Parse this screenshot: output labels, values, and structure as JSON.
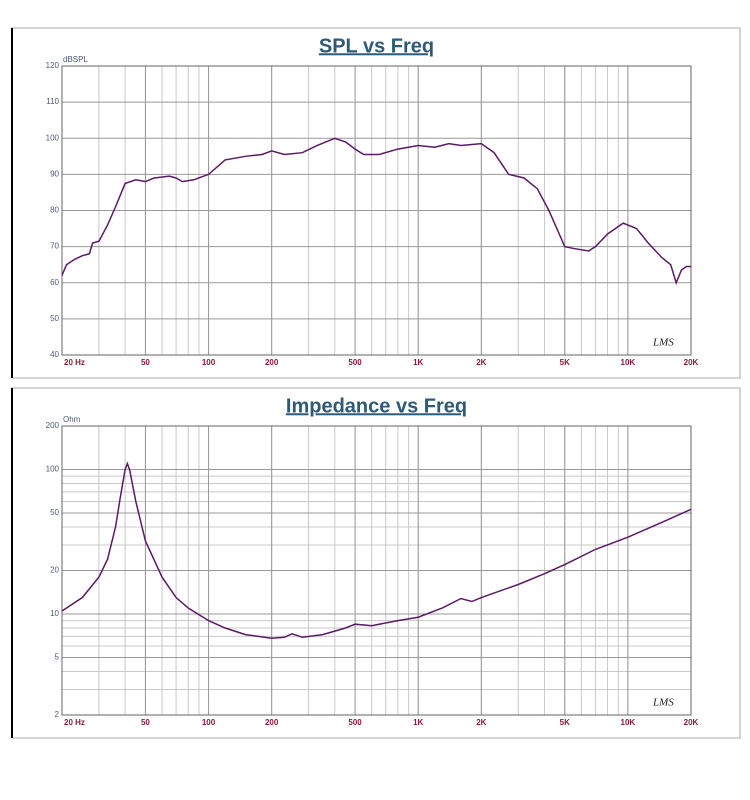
{
  "chart_data": [
    {
      "type": "line",
      "title": "SPL vs Freq",
      "y_label": "dBSPL",
      "annotation": "LMS",
      "x_scale": "log",
      "y_scale": "linear",
      "grid": true,
      "xlim": [
        20,
        20000
      ],
      "xticks": [
        {
          "value": 20,
          "label": "20 Hz"
        },
        50,
        100,
        200,
        500,
        {
          "value": 1000,
          "label": "1K"
        },
        {
          "value": 2000,
          "label": "2K"
        },
        {
          "value": 5000,
          "label": "5K"
        },
        {
          "value": 10000,
          "label": "10K"
        },
        {
          "value": 20000,
          "label": "20K"
        }
      ],
      "ylim": [
        40,
        120
      ],
      "yticks": [
        40,
        50,
        60,
        70,
        80,
        90,
        100,
        110,
        120
      ],
      "x": [
        20,
        21,
        23,
        25,
        27,
        28,
        30,
        33,
        36,
        40,
        45,
        50,
        55,
        65,
        70,
        75,
        85,
        100,
        120,
        150,
        180,
        200,
        230,
        280,
        330,
        400,
        450,
        500,
        550,
        650,
        800,
        1000,
        1200,
        1400,
        1600,
        2000,
        2300,
        2700,
        3200,
        3700,
        4200,
        5000,
        5500,
        6500,
        7000,
        8000,
        9500,
        11000,
        12500,
        14500,
        16000,
        17000,
        18000,
        19000,
        20000
      ],
      "series": [
        {
          "color": "#5a1a66",
          "values": [
            62,
            65,
            66.5,
            67.5,
            68,
            71,
            71.5,
            76,
            81,
            87.5,
            88.5,
            88,
            89,
            89.5,
            89,
            88,
            88.5,
            90,
            94,
            95,
            95.5,
            96.5,
            95.5,
            96,
            98,
            100,
            99,
            97,
            95.5,
            95.5,
            97,
            98,
            97.5,
            98.5,
            98,
            98.5,
            96,
            90,
            89,
            86,
            80,
            70,
            69.5,
            68.8,
            70,
            73.5,
            76.5,
            75,
            71,
            67,
            65,
            60,
            63.5,
            64.5,
            64.5
          ]
        }
      ]
    },
    {
      "type": "line",
      "title": "Impedance vs Freq",
      "y_label": "Ohm",
      "annotation": "LMS",
      "x_scale": "log",
      "y_scale": "log",
      "grid": true,
      "xlim": [
        20,
        20000
      ],
      "xticks": [
        {
          "value": 20,
          "label": "20 Hz"
        },
        50,
        100,
        200,
        500,
        {
          "value": 1000,
          "label": "1K"
        },
        {
          "value": 2000,
          "label": "2K"
        },
        {
          "value": 5000,
          "label": "5K"
        },
        {
          "value": 10000,
          "label": "10K"
        },
        {
          "value": 20000,
          "label": "20K"
        }
      ],
      "ylim": [
        2,
        200
      ],
      "yticks": [
        2,
        5,
        10,
        20,
        50,
        100,
        200
      ],
      "x": [
        20,
        25,
        30,
        33,
        36,
        38,
        40,
        41,
        42,
        45,
        50,
        60,
        70,
        80,
        100,
        120,
        150,
        200,
        230,
        250,
        280,
        350,
        450,
        500,
        600,
        800,
        1000,
        1300,
        1600,
        1800,
        2000,
        3000,
        4000,
        5000,
        7000,
        10000,
        15000,
        20000
      ],
      "series": [
        {
          "color": "#5a1a66",
          "values": [
            10.5,
            13,
            18,
            24,
            40,
            65,
            100,
            110,
            100,
            60,
            32,
            18,
            13,
            11,
            9,
            8,
            7.2,
            6.8,
            6.9,
            7.3,
            6.9,
            7.2,
            8,
            8.5,
            8.3,
            9,
            9.5,
            11,
            12.8,
            12.2,
            13,
            16,
            19,
            22,
            28,
            34,
            44,
            53
          ]
        }
      ]
    }
  ]
}
